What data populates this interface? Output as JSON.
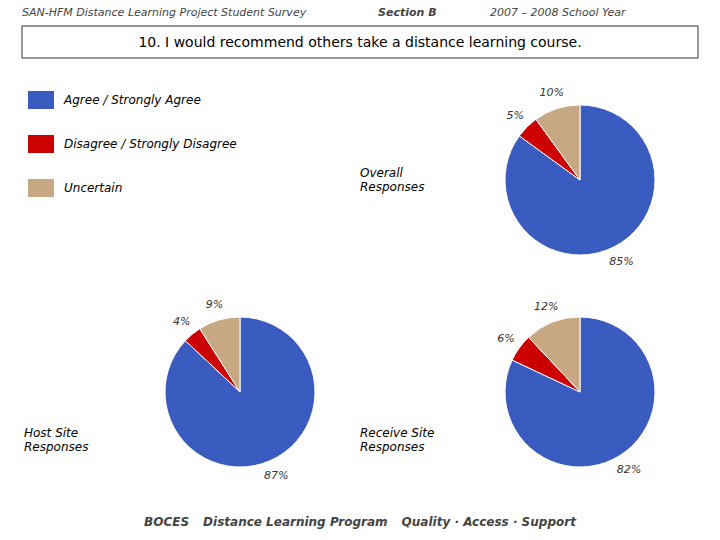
{
  "chart_data": [
    {
      "type": "pie",
      "title": "Overall\nResponses",
      "categories": [
        "Agree / Strongly Agree",
        "Disagree / Strongly Disagree",
        "Uncertain"
      ],
      "values": [
        85,
        5,
        10
      ],
      "value_labels": [
        "85%",
        "5%",
        "10%"
      ],
      "colors": [
        "#3a5bbf",
        "#cc0000",
        "#c8a882"
      ],
      "data_labels": true,
      "legend": "upper left",
      "annotations": [
        "SAN-HFM   Distance Learning Project   Student Survey",
        "Section B",
        "2007 – 2008 School Year",
        "10. I would recommend others take a distance learning course.",
        "BOCES",
        "Distance Learning Program",
        "Quality · Access · Support"
      ]
    },
    {
      "type": "pie",
      "title": "Host Site\nResponses",
      "values": [
        87,
        4,
        9
      ],
      "value_labels": [
        "87%",
        "4%",
        "9%"
      ],
      "colors": [
        "#3a5bbf",
        "#cc0000",
        "#c8a882"
      ],
      "data_labels": true
    },
    {
      "type": "pie",
      "title": "Receive Site\nResponses",
      "values": [
        82,
        6,
        12
      ],
      "value_labels": [
        "82%",
        "6%",
        "12%"
      ],
      "colors": [
        "#3a5bbf",
        "#cc0000",
        "#c8a882"
      ],
      "data_labels": true
    }
  ]
}
